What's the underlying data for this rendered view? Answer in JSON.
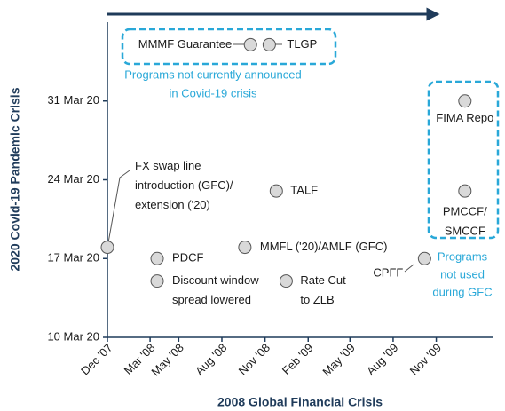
{
  "chart_data": {
    "type": "scatter",
    "x_label": "2008 Global Financial Crisis",
    "y_label": "2020 Covid-19 Pandemic Crisis",
    "x": [
      "2007-12-01",
      "2008-03-16",
      "2008-03-16",
      "2008-09-19",
      "2008-11-25",
      "2008-12-16",
      "2009-10-07",
      "2008-10-01",
      "2008-11-10",
      "2010-01-01",
      "2010-01-01"
    ],
    "values": [
      "2020-03-18",
      "2020-03-17",
      "2020-03-15",
      "2020-03-18",
      "2020-03-23",
      "2020-03-15",
      "2020-03-17",
      "2020-04-05",
      "2020-04-05",
      "2020-03-31",
      "2020-03-23"
    ],
    "point_labels": [
      [
        "FX swap line",
        "introduction (GFC)/",
        "extension ('20)"
      ],
      [
        "PDCF"
      ],
      [
        "Discount window",
        "spread lowered"
      ],
      [
        "MMFL ('20)/AMLF (GFC)"
      ],
      [
        "TALF"
      ],
      [
        "Rate Cut",
        "to ZLB"
      ],
      [
        "CPFF"
      ],
      [
        "MMMF Guarantee"
      ],
      [
        "TLGP"
      ],
      [
        "FIMA Repo"
      ],
      [
        "PMCCF/",
        "SMCCF"
      ]
    ],
    "color": "#d9d9d9",
    "xlim": [
      "2007-12-01",
      "2010-03-01"
    ],
    "xticks": [
      {
        "value": "2007-12-01",
        "label": "Dec '07"
      },
      {
        "value": "2008-03-01",
        "label": "Mar '08"
      },
      {
        "value": "2008-05-01",
        "label": "May '08"
      },
      {
        "value": "2008-08-01",
        "label": "Aug '08"
      },
      {
        "value": "2008-11-01",
        "label": "Nov '08"
      },
      {
        "value": "2009-02-01",
        "label": "Feb '09"
      },
      {
        "value": "2009-05-01",
        "label": "May '09"
      },
      {
        "value": "2009-08-01",
        "label": "Aug '09"
      },
      {
        "value": "2009-11-01",
        "label": "Nov '09"
      }
    ],
    "ylim": [
      "2020-03-10",
      "2020-04-07"
    ],
    "yticks": [
      {
        "value": "2020-03-10",
        "label": "10 Mar 20"
      },
      {
        "value": "2020-03-17",
        "label": "17 Mar 20"
      },
      {
        "value": "2020-03-24",
        "label": "24 Mar 20"
      },
      {
        "value": "2020-03-31",
        "label": "31 Mar 20"
      }
    ],
    "annotations": [
      [
        "Programs not currently announced",
        "in Covid-19 crisis"
      ],
      [
        "Programs",
        "not used",
        "during GFC"
      ]
    ]
  }
}
